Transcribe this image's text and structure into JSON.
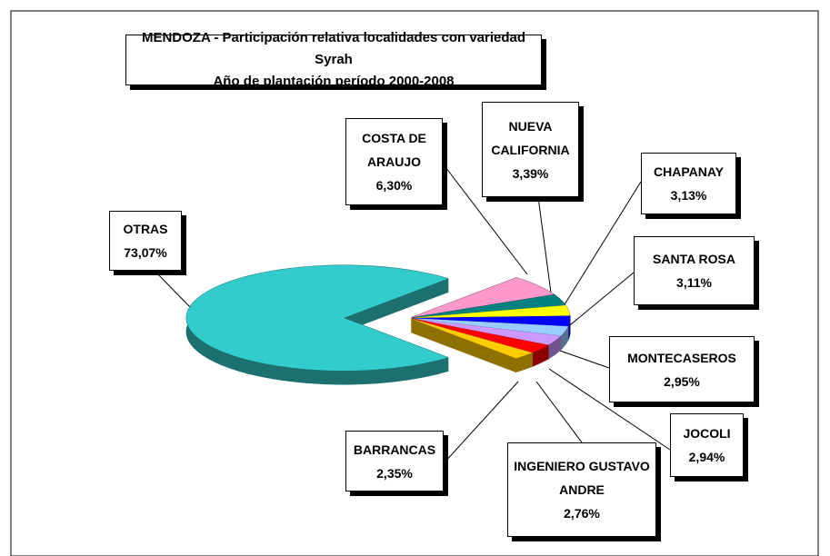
{
  "chart_data": {
    "type": "pie",
    "title": "MENDOZA - Participación relativa localidades con variedad Syrah",
    "subtitle": "Año de plantación período 2000-2008",
    "categories": [
      "OTRAS",
      "COSTA DE ARAUJO",
      "NUEVA CALIFORNIA",
      "CHAPANAY",
      "SANTA ROSA",
      "MONTECASEROS",
      "JOCOLI",
      "INGENIERO GUSTAVO ANDRE",
      "BARRANCAS"
    ],
    "values": [
      73.07,
      6.3,
      3.39,
      3.13,
      3.11,
      2.95,
      2.94,
      2.76,
      2.35
    ],
    "value_labels": [
      "73,07%",
      "6,30%",
      "3,39%",
      "3,13%",
      "3,11%",
      "2,95%",
      "2,94%",
      "2,76%",
      "2,35%"
    ],
    "colors": [
      "#33cccc",
      "#ff99cc",
      "#008080",
      "#ffff00",
      "#0000ff",
      "#99ccff",
      "#cc99ff",
      "#ff0000",
      "#ffcc00"
    ]
  }
}
